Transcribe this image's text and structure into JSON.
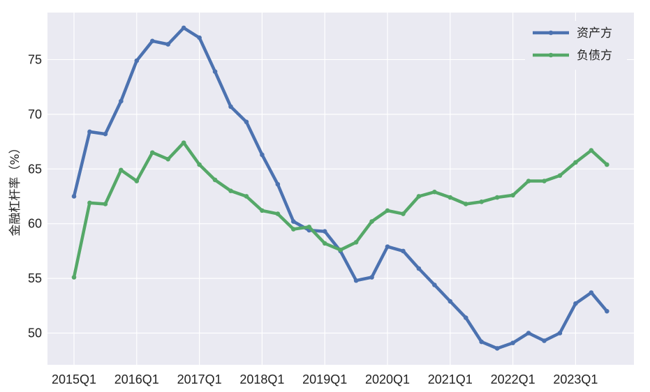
{
  "chart_data": {
    "type": "line",
    "title": "",
    "xlabel": "",
    "ylabel": "金融杠杆率（%）",
    "categories": [
      "2015Q1",
      "2015Q2",
      "2015Q3",
      "2015Q4",
      "2016Q1",
      "2016Q2",
      "2016Q3",
      "2016Q4",
      "2017Q1",
      "2017Q2",
      "2017Q3",
      "2017Q4",
      "2018Q1",
      "2018Q2",
      "2018Q3",
      "2018Q4",
      "2019Q1",
      "2019Q2",
      "2019Q3",
      "2019Q4",
      "2020Q1",
      "2020Q2",
      "2020Q3",
      "2020Q4",
      "2021Q1",
      "2021Q2",
      "2021Q3",
      "2021Q4",
      "2022Q1",
      "2022Q2",
      "2022Q3",
      "2022Q4",
      "2023Q1",
      "2023Q2",
      "2023Q3"
    ],
    "x_tick_labels": [
      "2015Q1",
      "2016Q1",
      "2017Q1",
      "2018Q1",
      "2019Q1",
      "2020Q1",
      "2021Q1",
      "2022Q1",
      "2023Q1"
    ],
    "y_ticks": [
      50,
      55,
      60,
      65,
      70,
      75
    ],
    "ylim": [
      47.1,
      79.3
    ],
    "grid": true,
    "legend_position": "top-right",
    "series": [
      {
        "name": "资产方",
        "color": "#4c72b0",
        "values": [
          62.5,
          68.4,
          68.2,
          71.2,
          74.9,
          76.7,
          76.4,
          77.9,
          77.0,
          73.9,
          70.7,
          69.3,
          66.3,
          63.6,
          60.2,
          59.4,
          59.3,
          57.5,
          54.8,
          55.1,
          57.9,
          57.5,
          55.9,
          54.4,
          52.9,
          51.4,
          49.2,
          48.6,
          49.1,
          50.0,
          49.3,
          50.0,
          52.7,
          53.7,
          52.0
        ]
      },
      {
        "name": "负债方",
        "color": "#55a868",
        "values": [
          55.1,
          61.9,
          61.8,
          64.9,
          63.9,
          66.5,
          65.9,
          67.4,
          65.4,
          64.0,
          63.0,
          62.5,
          61.2,
          60.9,
          59.5,
          59.7,
          58.2,
          57.6,
          58.3,
          60.2,
          61.2,
          60.9,
          62.5,
          62.9,
          62.4,
          61.8,
          62.0,
          62.4,
          62.6,
          63.9,
          63.9,
          64.4,
          65.6,
          66.7,
          65.4
        ]
      }
    ]
  }
}
